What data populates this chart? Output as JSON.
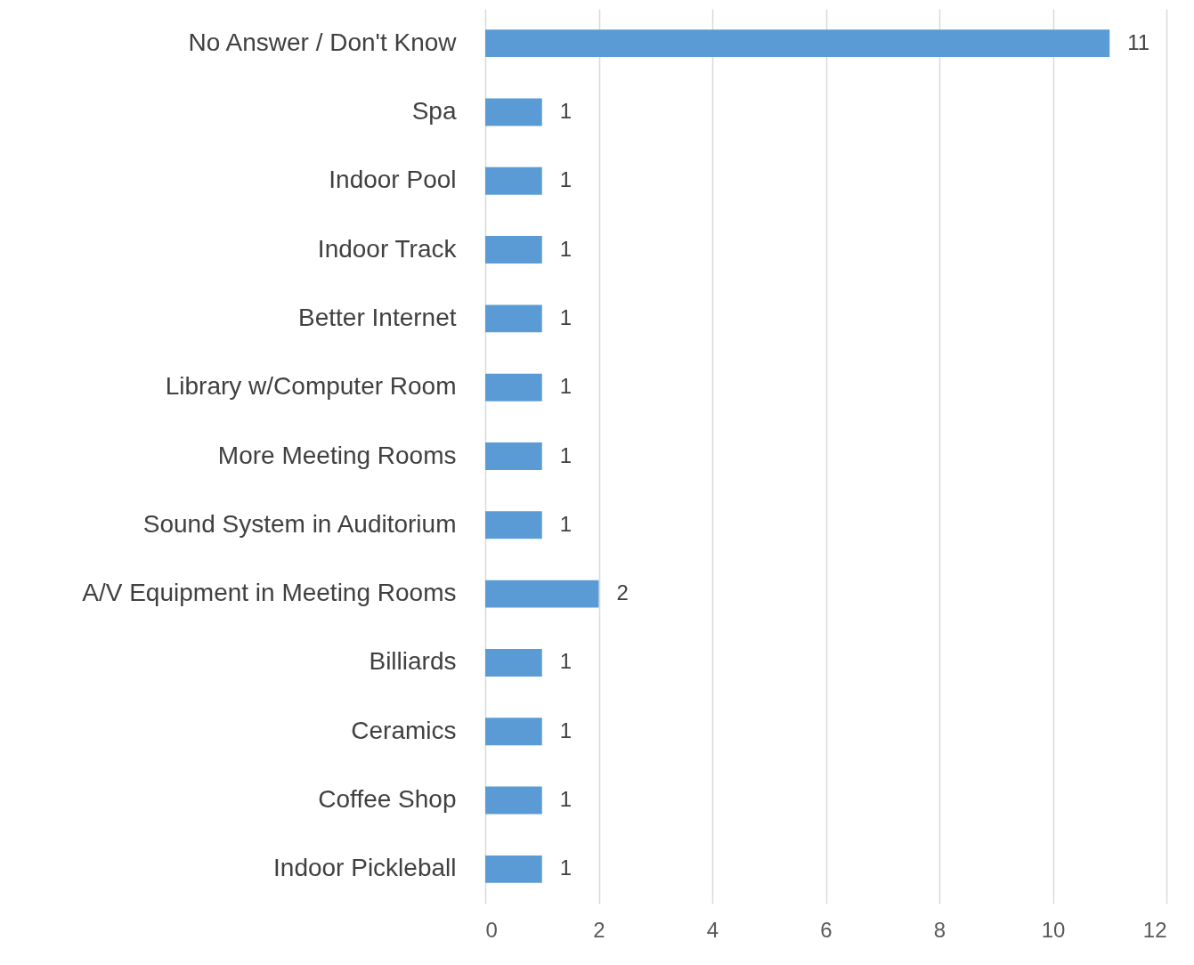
{
  "chart_data": {
    "type": "bar",
    "orientation": "horizontal",
    "categories": [
      "No Answer / Don't Know",
      "Spa",
      "Indoor Pool",
      "Indoor Track",
      "Better Internet",
      "Library w/Computer Room",
      "More Meeting Rooms",
      "Sound System in Auditorium",
      "A/V Equipment in Meeting Rooms",
      "Billiards",
      "Ceramics",
      "Coffee Shop",
      "Indoor Pickleball"
    ],
    "values": [
      11,
      1,
      1,
      1,
      1,
      1,
      1,
      1,
      2,
      1,
      1,
      1,
      1
    ],
    "color": "#5b9bd5",
    "xlim": [
      0,
      12
    ],
    "xticks": [
      0,
      2,
      4,
      6,
      8,
      10,
      12
    ],
    "grid": "x",
    "data_labels": true
  }
}
